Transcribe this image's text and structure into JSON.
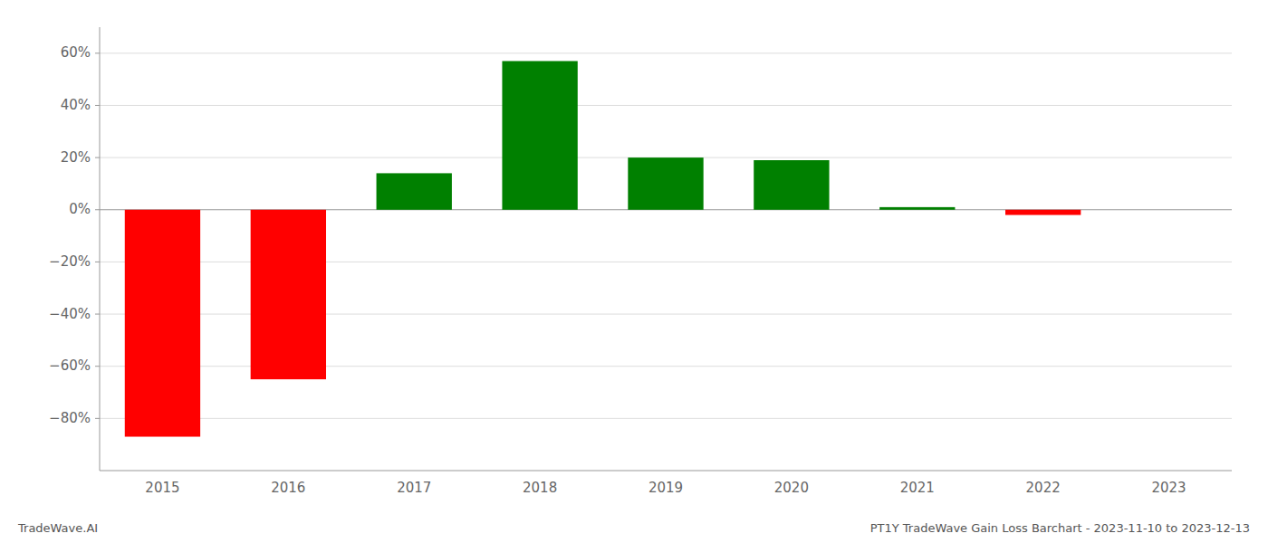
{
  "chart_data": {
    "type": "bar",
    "categories": [
      "2015",
      "2016",
      "2017",
      "2018",
      "2019",
      "2020",
      "2021",
      "2022",
      "2023"
    ],
    "values": [
      -0.87,
      -0.65,
      0.14,
      0.57,
      0.2,
      0.19,
      0.01,
      -0.02,
      0.0
    ],
    "colors": [
      "#ff0000",
      "#ff0000",
      "#008000",
      "#008000",
      "#008000",
      "#008000",
      "#008000",
      "#ff0000",
      "#008000"
    ],
    "ylim": [
      -1.0,
      0.7
    ],
    "yticks": [
      {
        "value": -0.8,
        "label": "−80%"
      },
      {
        "value": -0.6,
        "label": "−60%"
      },
      {
        "value": -0.4,
        "label": "−40%"
      },
      {
        "value": -0.2,
        "label": "−20%"
      },
      {
        "value": 0.0,
        "label": "0%"
      },
      {
        "value": 0.2,
        "label": "20%"
      },
      {
        "value": 0.4,
        "label": "40%"
      },
      {
        "value": 0.6,
        "label": "60%"
      }
    ],
    "grid": true,
    "annotations": [
      "TradeWave.AI",
      "PT1Y TradeWave Gain Loss Barchart - 2023-11-10 to 2023-12-13"
    ]
  }
}
